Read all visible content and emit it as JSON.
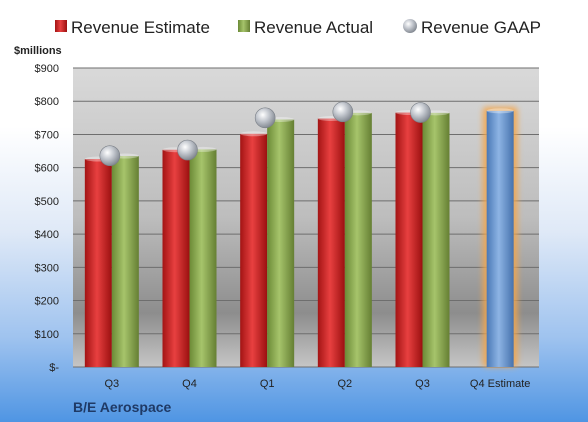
{
  "chart_data": {
    "type": "bar",
    "title": "B/E Aerospace",
    "unit_label": "$millions",
    "categories": [
      "Q3",
      "Q4",
      "Q1",
      "Q2",
      "Q3",
      "Q4 Estimate"
    ],
    "series": [
      {
        "name": "Revenue Estimate",
        "kind": "bar",
        "color": "#d42a2a",
        "values": [
          626,
          654,
          702,
          748,
          766,
          null
        ]
      },
      {
        "name": "Revenue Actual",
        "kind": "bar",
        "color": "#8aa851",
        "values": [
          635,
          655,
          745,
          765,
          765,
          null
        ]
      },
      {
        "name": "Revenue GAAP",
        "kind": "marker",
        "color": "#b9bec6",
        "values": [
          636,
          653,
          750,
          768,
          766,
          null
        ]
      },
      {
        "name": "Q4 Estimate",
        "kind": "bar",
        "color": "#6f9bd4",
        "values": [
          null,
          null,
          null,
          null,
          null,
          771
        ]
      }
    ],
    "y_ticks": [
      "$-",
      "$100",
      "$200",
      "$300",
      "$400",
      "$500",
      "$600",
      "$700",
      "$800",
      "$900"
    ],
    "ylim": [
      0,
      900
    ],
    "y_step": 100,
    "grid": true,
    "legend_position": "top"
  }
}
